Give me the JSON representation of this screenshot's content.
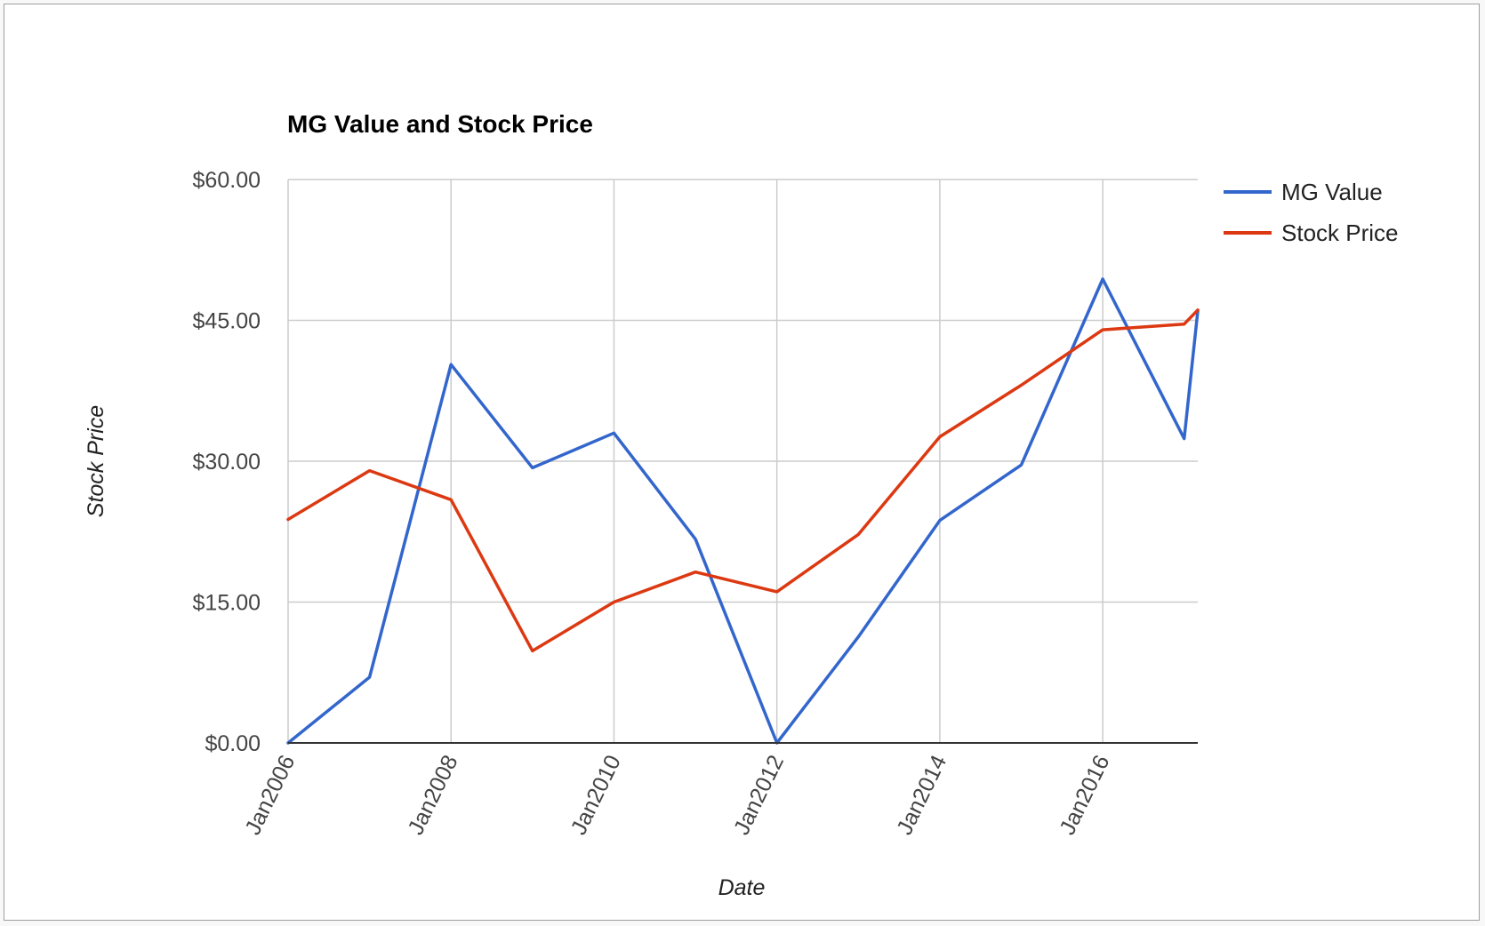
{
  "chart_data": {
    "type": "line",
    "title": "MG Value and Stock Price",
    "xlabel": "Date",
    "ylabel": "Stock Price",
    "x": [
      "2006-01",
      "2007-01",
      "2008-01",
      "2009-01",
      "2010-01",
      "2011-01",
      "2012-01",
      "2013-01",
      "2014-01",
      "2015-01",
      "2016-01",
      "2017-01",
      "2017-03"
    ],
    "x_tick_labels": [
      "Jan2006",
      "Jan2008",
      "Jan2010",
      "Jan2012",
      "Jan2014",
      "Jan2016"
    ],
    "y_tick_labels": [
      "$0.00",
      "$15.00",
      "$30.00",
      "$45.00",
      "$60.00"
    ],
    "ylim": [
      0,
      60
    ],
    "grid": true,
    "legend_position": "right",
    "series": [
      {
        "name": "MG Value",
        "color": "#3366cc",
        "values": [
          0.0,
          7.0,
          40.3,
          29.3,
          33.0,
          21.7,
          0.0,
          11.3,
          23.7,
          29.6,
          49.4,
          32.4,
          46.0
        ]
      },
      {
        "name": "Stock Price",
        "color": "#dc3912",
        "values": [
          23.8,
          29.0,
          25.9,
          9.8,
          15.0,
          18.2,
          16.1,
          22.2,
          32.6,
          38.1,
          44.0,
          44.6,
          46.1
        ]
      }
    ]
  }
}
